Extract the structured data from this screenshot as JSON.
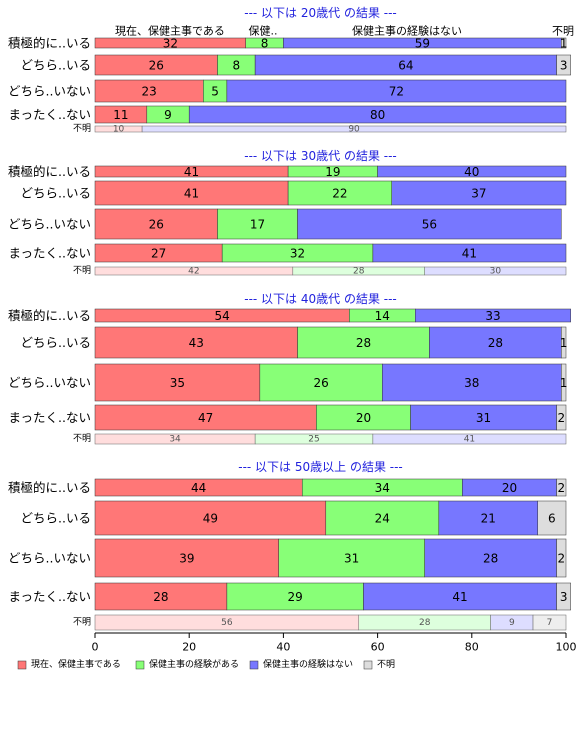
{
  "chart_data": {
    "type": "bar",
    "orientation": "horizontal-stacked-100",
    "legend": {
      "placement": "bottom-left",
      "entries": [
        {
          "name": "現在、保健主事である",
          "color": "#ff7777"
        },
        {
          "name": "保健主事の経験がある",
          "color": "#88ff77"
        },
        {
          "name": "保健主事の経験はない",
          "color": "#7777ff"
        },
        {
          "name": "不明",
          "color": "#dddddd"
        }
      ]
    },
    "column_headers": [
      "現在、保健主事である",
      "保健..",
      "保健主事の経験はない",
      "不明"
    ],
    "xlim": [
      0,
      100
    ],
    "xticks": [
      "0",
      "20",
      "40",
      "60",
      "80",
      "100"
    ],
    "panels": [
      {
        "title": "--- 以下は 20歳代 の結果 ---",
        "rows": [
          {
            "label": "積極的に..いる",
            "values": [
              32,
              8,
              59,
              1
            ]
          },
          {
            "label": "どちら..いる",
            "values": [
              26,
              8,
              64,
              3
            ]
          },
          {
            "label": "どちら..いない",
            "values": [
              23,
              5,
              72,
              0
            ]
          },
          {
            "label": "まったく..ない",
            "values": [
              11,
              9,
              80,
              0
            ]
          }
        ],
        "unknown": {
          "label": "不明",
          "values": [
            10,
            0,
            90,
            0
          ]
        }
      },
      {
        "title": "--- 以下は 30歳代 の結果 ---",
        "rows": [
          {
            "label": "積極的に..いる",
            "values": [
              41,
              19,
              40,
              0
            ]
          },
          {
            "label": "どちら..いる",
            "values": [
              41,
              22,
              37,
              0
            ]
          },
          {
            "label": "どちら..いない",
            "values": [
              26,
              17,
              56,
              0
            ]
          },
          {
            "label": "まったく..ない",
            "values": [
              27,
              32,
              41,
              0
            ]
          }
        ],
        "unknown": {
          "label": "不明",
          "values": [
            42,
            28,
            30,
            0
          ]
        }
      },
      {
        "title": "--- 以下は 40歳代 の結果 ---",
        "rows": [
          {
            "label": "積極的に..いる",
            "values": [
              54,
              14,
              33,
              0
            ]
          },
          {
            "label": "どちら..いる",
            "values": [
              43,
              28,
              28,
              1
            ]
          },
          {
            "label": "どちら..いない",
            "values": [
              35,
              26,
              38,
              1
            ]
          },
          {
            "label": "まったく..ない",
            "values": [
              47,
              20,
              31,
              2
            ]
          }
        ],
        "unknown": {
          "label": "不明",
          "values": [
            34,
            25,
            41,
            0
          ]
        }
      },
      {
        "title": "--- 以下は 50歳以上 の結果 ---",
        "rows": [
          {
            "label": "積極的に..いる",
            "values": [
              44,
              34,
              20,
              2
            ]
          },
          {
            "label": "どちら..いる",
            "values": [
              49,
              24,
              21,
              6
            ]
          },
          {
            "label": "どちら..いない",
            "values": [
              39,
              31,
              28,
              2
            ]
          },
          {
            "label": "まったく..ない",
            "values": [
              28,
              29,
              41,
              3
            ]
          }
        ],
        "unknown": {
          "label": "不明",
          "values": [
            56,
            28,
            9,
            7
          ]
        }
      }
    ]
  }
}
